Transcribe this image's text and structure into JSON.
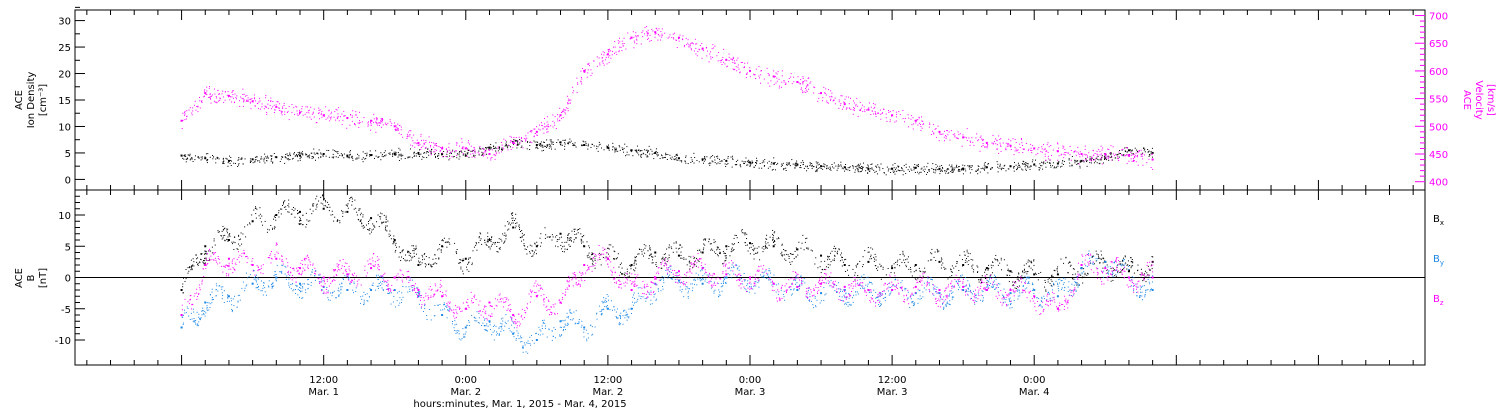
{
  "chart_data": [
    {
      "type": "scatter",
      "panel": "top",
      "ylabel": [
        "ACE",
        "Ion Density",
        "[cm⁻³]"
      ],
      "ylim": [
        -2,
        32
      ],
      "yticks": [
        0,
        5,
        10,
        15,
        20,
        25,
        30
      ],
      "y2label": [
        "ACE",
        "Velocity",
        "[km/s]"
      ],
      "y2lim": [
        385,
        710
      ],
      "y2ticks": [
        400,
        450,
        500,
        550,
        600,
        650,
        700
      ],
      "y2color": "#ff00ff",
      "series": [
        {
          "name": "",
          "axis": "left",
          "color": "#000000",
          "x": [
            0,
            2,
            4,
            6,
            8,
            10,
            12,
            14,
            16,
            18,
            20,
            22,
            24,
            26,
            28,
            30,
            32,
            34,
            36,
            38,
            40,
            42,
            44,
            46,
            48,
            50,
            52,
            54,
            56,
            58,
            60,
            62,
            64,
            66,
            68,
            70,
            72,
            74,
            76,
            78,
            80,
            82
          ],
          "y": [
            4.5,
            4.0,
            3.5,
            3.8,
            4.2,
            4.5,
            4.8,
            4.5,
            4.6,
            4.8,
            5.0,
            4.8,
            4.5,
            6.0,
            7.0,
            6.5,
            7.0,
            6.5,
            6.0,
            5.5,
            5.0,
            4.0,
            3.8,
            3.5,
            3.2,
            3.0,
            2.8,
            2.5,
            2.3,
            2.0,
            2.0,
            2.2,
            2.0,
            2.0,
            2.3,
            2.5,
            2.8,
            3.0,
            3.5,
            4.0,
            5.5,
            5.0
          ]
        },
        {
          "name": "",
          "axis": "right",
          "color": "#ff00ff",
          "x": [
            0,
            2,
            4,
            6,
            8,
            10,
            12,
            14,
            16,
            18,
            20,
            22,
            24,
            26,
            28,
            30,
            32,
            34,
            36,
            38,
            40,
            42,
            44,
            46,
            48,
            50,
            52,
            54,
            56,
            58,
            60,
            62,
            64,
            66,
            68,
            70,
            72,
            74,
            76,
            78,
            80,
            82
          ],
          "y": [
            510,
            560,
            555,
            545,
            535,
            525,
            520,
            515,
            510,
            500,
            470,
            460,
            460,
            450,
            470,
            490,
            520,
            600,
            630,
            660,
            670,
            660,
            640,
            620,
            600,
            590,
            580,
            560,
            540,
            530,
            520,
            510,
            490,
            480,
            470,
            465,
            460,
            455,
            450,
            450,
            448,
            440
          ]
        }
      ]
    },
    {
      "type": "scatter",
      "panel": "bottom",
      "ylabel": [
        "ACE",
        "B",
        "[nT]"
      ],
      "ylim": [
        -14,
        14
      ],
      "yticks": [
        -10,
        -5,
        0,
        5,
        10
      ],
      "zero_line": true,
      "series": [
        {
          "name": "Bx",
          "color": "#000000",
          "x": [
            0,
            2,
            4,
            6,
            8,
            10,
            12,
            14,
            16,
            18,
            20,
            22,
            24,
            26,
            28,
            30,
            32,
            34,
            36,
            38,
            40,
            42,
            44,
            46,
            48,
            50,
            52,
            54,
            56,
            58,
            60,
            62,
            64,
            66,
            68,
            70,
            72,
            74,
            76,
            78,
            80,
            82
          ],
          "y": [
            -2,
            5,
            6,
            9,
            10,
            10.5,
            11,
            10.5,
            9.5,
            6,
            2,
            5,
            3,
            6,
            8,
            5,
            7,
            5,
            3,
            2,
            4,
            3.5,
            4,
            5,
            5.5,
            5,
            4.5,
            3.5,
            2,
            2.5,
            1.5,
            2,
            2.5,
            2,
            1.5,
            1.0,
            0.5,
            0.5,
            1.5,
            2.5,
            1.0,
            2.5
          ]
        },
        {
          "name": "By",
          "color": "#1e88e5",
          "x": [
            0,
            2,
            4,
            6,
            8,
            10,
            12,
            14,
            16,
            18,
            20,
            22,
            24,
            26,
            28,
            30,
            32,
            34,
            36,
            38,
            40,
            42,
            44,
            46,
            48,
            50,
            52,
            54,
            56,
            58,
            60,
            62,
            64,
            66,
            68,
            70,
            72,
            74,
            76,
            78,
            80,
            82
          ],
          "y": [
            -8,
            -4,
            -3,
            -1,
            0,
            -1,
            -1.5,
            -2,
            -2,
            -2,
            -3,
            -6,
            -8,
            -7,
            -9,
            -10,
            -7,
            -8,
            -5,
            -5,
            -1,
            -0.5,
            -1,
            0,
            0,
            -1,
            -2,
            -2.5,
            -2,
            -2,
            -2,
            -2.5,
            -2.5,
            -2,
            -2,
            -2.5,
            -2,
            -3,
            1.5,
            2.5,
            0,
            -2
          ]
        },
        {
          "name": "Bz",
          "color": "#ff00ff",
          "x": [
            0,
            2,
            4,
            6,
            8,
            10,
            12,
            14,
            16,
            18,
            20,
            22,
            24,
            26,
            28,
            30,
            32,
            34,
            36,
            38,
            40,
            42,
            44,
            46,
            48,
            50,
            52,
            54,
            56,
            58,
            60,
            62,
            64,
            66,
            68,
            70,
            72,
            74,
            76,
            78,
            80,
            82
          ],
          "y": [
            -6,
            2,
            3,
            2,
            3,
            1.5,
            0,
            0.5,
            1.5,
            0,
            -2,
            -3,
            -5,
            -4,
            -6,
            -3,
            -4,
            2,
            3,
            -2,
            0,
            1,
            1.5,
            0.5,
            0,
            -1,
            -1.5,
            -1,
            -1.5,
            -2,
            -2,
            -1.5,
            -2,
            -1.5,
            -2,
            -2,
            -3,
            -5,
            2,
            1.5,
            0,
            0
          ]
        }
      ]
    }
  ],
  "x_axis": {
    "range_hours": [
      -9,
      105
    ],
    "major_ticks": [
      {
        "h": 12,
        "time": "12:00",
        "date": "Mar. 1"
      },
      {
        "h": 24,
        "time": "0:00",
        "date": "Mar. 2"
      },
      {
        "h": 36,
        "time": "12:00",
        "date": "Mar. 2"
      },
      {
        "h": 48,
        "time": "0:00",
        "date": "Mar. 3"
      },
      {
        "h": 60,
        "time": "12:00",
        "date": "Mar. 3"
      },
      {
        "h": 72,
        "time": "0:00",
        "date": "Mar. 4"
      }
    ],
    "title": "hours:minutes, Mar.  1, 2015 - Mar.  4, 2015"
  },
  "legend": [
    {
      "base": "B",
      "sub": "x",
      "color": "#000000"
    },
    {
      "base": "B",
      "sub": "y",
      "color": "#1e88e5"
    },
    {
      "base": "B",
      "sub": "z",
      "color": "#ff00ff"
    }
  ]
}
